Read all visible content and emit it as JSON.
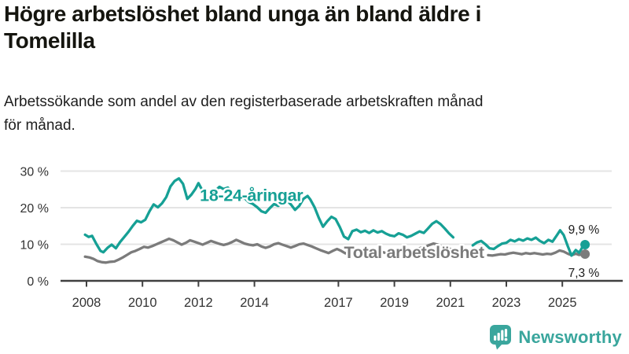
{
  "header": {
    "title": "Högre arbetslöshet bland unga än bland äldre i\nTomelilla",
    "subtitle": "Arbetssökande som andel av den registerbaserade arbetskraften månad\nför månad."
  },
  "footer": {
    "brand": "Newsworthy",
    "logo_icon": "bar-chart-speech-bubble-icon"
  },
  "colors": {
    "young": "#16a095",
    "total": "#7b7b7b",
    "grid": "#e4e4e4",
    "axis": "#404040",
    "tick_text": "#333333",
    "value_text": "#1b1b1b",
    "brand": "#3aa69d",
    "halo": "#ffffff"
  },
  "chart_data": {
    "type": "line",
    "unit": "%",
    "grid": "horizontal",
    "x_axis": {
      "tick_labels": [
        "2008",
        "2010",
        "2012",
        "2014",
        "2017",
        "2019",
        "2021",
        "2023",
        "2025"
      ],
      "tick_years": [
        2008,
        2010,
        2012,
        2014,
        2017,
        2019,
        2021,
        2023,
        2025
      ],
      "range": [
        2007.9,
        2026.1
      ]
    },
    "y_axis": {
      "tick_labels": [
        "0 %",
        "10 %",
        "20 %",
        "30 %"
      ],
      "tick_values": [
        0,
        10,
        20,
        30
      ],
      "range": [
        0,
        32
      ]
    },
    "series": [
      {
        "id": "young",
        "name": "18-24-åringar",
        "color": "#16a095",
        "end_value": 9.9,
        "end_label": "9,9 %",
        "segments": [
          [
            [
              2007.95,
              12.6
            ],
            [
              2008.08,
              12.0
            ],
            [
              2008.2,
              12.3
            ],
            [
              2008.35,
              10.1
            ],
            [
              2008.5,
              8.2
            ],
            [
              2008.6,
              7.8
            ],
            [
              2008.75,
              9.0
            ],
            [
              2008.9,
              9.9
            ],
            [
              2009.05,
              8.9
            ],
            [
              2009.2,
              10.6
            ],
            [
              2009.35,
              12.0
            ],
            [
              2009.5,
              13.4
            ],
            [
              2009.65,
              15.0
            ],
            [
              2009.8,
              16.4
            ],
            [
              2009.95,
              16.0
            ],
            [
              2010.1,
              16.7
            ],
            [
              2010.25,
              19.0
            ],
            [
              2010.4,
              20.9
            ],
            [
              2010.55,
              20.1
            ],
            [
              2010.7,
              21.2
            ],
            [
              2010.85,
              22.9
            ],
            [
              2011.0,
              25.8
            ],
            [
              2011.15,
              27.3
            ],
            [
              2011.3,
              28.0
            ],
            [
              2011.45,
              26.5
            ],
            [
              2011.6,
              22.4
            ],
            [
              2011.75,
              23.6
            ],
            [
              2011.9,
              25.2
            ],
            [
              2012.0,
              26.7
            ],
            [
              2012.15,
              24.6
            ],
            [
              2012.3,
              22.1
            ],
            [
              2012.45,
              23.3
            ],
            [
              2012.6,
              24.6
            ],
            [
              2012.75,
              25.7
            ],
            [
              2012.9,
              25.1
            ],
            [
              2013.05,
              25.5
            ],
            [
              2013.2,
              24.1
            ],
            [
              2013.35,
              22.9
            ],
            [
              2013.5,
              22.1
            ],
            [
              2013.65,
              22.6
            ],
            [
              2013.8,
              21.5
            ],
            [
              2013.95,
              21.0
            ],
            [
              2014.1,
              20.1
            ],
            [
              2014.25,
              19.0
            ],
            [
              2014.4,
              18.6
            ],
            [
              2014.55,
              19.9
            ],
            [
              2014.7,
              21.0
            ],
            [
              2014.85,
              20.5
            ],
            [
              2015.0,
              21.4
            ],
            [
              2015.15,
              22.0
            ],
            [
              2015.3,
              20.9
            ],
            [
              2015.45,
              19.4
            ],
            [
              2015.6,
              20.5
            ],
            [
              2015.75,
              22.4
            ],
            [
              2015.9,
              23.2
            ],
            [
              2016.0,
              22.2
            ],
            [
              2016.15,
              20.1
            ],
            [
              2016.3,
              17.2
            ],
            [
              2016.45,
              14.8
            ],
            [
              2016.6,
              16.3
            ],
            [
              2016.75,
              17.5
            ],
            [
              2016.9,
              16.9
            ],
            [
              2017.05,
              14.7
            ],
            [
              2017.2,
              12.1
            ],
            [
              2017.35,
              11.4
            ],
            [
              2017.5,
              13.6
            ],
            [
              2017.65,
              14.0
            ],
            [
              2017.8,
              13.3
            ],
            [
              2017.95,
              13.7
            ],
            [
              2018.1,
              13.1
            ],
            [
              2018.25,
              13.8
            ],
            [
              2018.4,
              13.2
            ],
            [
              2018.55,
              13.6
            ],
            [
              2018.7,
              12.9
            ],
            [
              2018.85,
              12.4
            ],
            [
              2019.0,
              12.2
            ],
            [
              2019.15,
              13.0
            ],
            [
              2019.3,
              12.6
            ],
            [
              2019.45,
              11.9
            ],
            [
              2019.6,
              12.3
            ],
            [
              2019.75,
              12.9
            ],
            [
              2019.9,
              13.5
            ],
            [
              2020.05,
              13.1
            ],
            [
              2020.2,
              14.3
            ],
            [
              2020.35,
              15.6
            ],
            [
              2020.5,
              16.3
            ],
            [
              2020.65,
              15.5
            ],
            [
              2020.8,
              14.3
            ],
            [
              2020.95,
              13.0
            ],
            [
              2021.1,
              11.9
            ]
          ],
          [
            [
              2021.8,
              9.7
            ],
            [
              2021.95,
              10.5
            ],
            [
              2022.1,
              10.9
            ],
            [
              2022.25,
              10.0
            ],
            [
              2022.4,
              8.9
            ],
            [
              2022.55,
              8.7
            ],
            [
              2022.7,
              9.5
            ],
            [
              2022.85,
              10.2
            ],
            [
              2023.0,
              10.4
            ],
            [
              2023.15,
              11.2
            ],
            [
              2023.3,
              10.8
            ],
            [
              2023.45,
              11.4
            ],
            [
              2023.6,
              11.0
            ],
            [
              2023.75,
              11.6
            ],
            [
              2023.9,
              11.2
            ],
            [
              2024.05,
              11.8
            ],
            [
              2024.2,
              10.9
            ],
            [
              2024.35,
              10.3
            ],
            [
              2024.5,
              11.2
            ],
            [
              2024.65,
              10.7
            ],
            [
              2024.8,
              12.4
            ],
            [
              2024.92,
              13.8
            ],
            [
              2025.05,
              12.5
            ],
            [
              2025.2,
              9.4
            ],
            [
              2025.33,
              6.9
            ],
            [
              2025.48,
              8.4
            ],
            [
              2025.6,
              7.7
            ],
            [
              2025.77,
              9.9
            ]
          ]
        ]
      },
      {
        "id": "total",
        "name": "Total arbetslöshet",
        "color": "#7b7b7b",
        "end_value": 7.3,
        "end_label": "7,3 %",
        "segments": [
          [
            [
              2007.95,
              6.6
            ],
            [
              2008.1,
              6.4
            ],
            [
              2008.25,
              6.0
            ],
            [
              2008.4,
              5.4
            ],
            [
              2008.55,
              5.1
            ],
            [
              2008.7,
              5.0
            ],
            [
              2008.85,
              5.2
            ],
            [
              2009.0,
              5.3
            ],
            [
              2009.15,
              5.8
            ],
            [
              2009.3,
              6.4
            ],
            [
              2009.45,
              7.1
            ],
            [
              2009.6,
              7.8
            ],
            [
              2009.75,
              8.2
            ],
            [
              2009.9,
              8.7
            ],
            [
              2010.05,
              9.3
            ],
            [
              2010.2,
              9.1
            ],
            [
              2010.35,
              9.5
            ],
            [
              2010.5,
              10.0
            ],
            [
              2010.65,
              10.5
            ],
            [
              2010.8,
              11.0
            ],
            [
              2010.95,
              11.5
            ],
            [
              2011.1,
              11.1
            ],
            [
              2011.25,
              10.5
            ],
            [
              2011.4,
              9.9
            ],
            [
              2011.55,
              10.4
            ],
            [
              2011.7,
              11.1
            ],
            [
              2011.85,
              10.7
            ],
            [
              2012.0,
              10.3
            ],
            [
              2012.15,
              9.9
            ],
            [
              2012.3,
              10.4
            ],
            [
              2012.45,
              10.9
            ],
            [
              2012.6,
              10.5
            ],
            [
              2012.75,
              10.1
            ],
            [
              2012.9,
              9.8
            ],
            [
              2013.05,
              10.1
            ],
            [
              2013.2,
              10.6
            ],
            [
              2013.35,
              11.2
            ],
            [
              2013.5,
              10.7
            ],
            [
              2013.65,
              10.2
            ],
            [
              2013.8,
              9.9
            ],
            [
              2013.95,
              9.7
            ],
            [
              2014.1,
              10.0
            ],
            [
              2014.25,
              9.4
            ],
            [
              2014.4,
              9.0
            ],
            [
              2014.55,
              9.4
            ],
            [
              2014.7,
              10.0
            ],
            [
              2014.85,
              10.3
            ],
            [
              2015.0,
              9.9
            ],
            [
              2015.15,
              9.5
            ],
            [
              2015.3,
              9.1
            ],
            [
              2015.45,
              9.5
            ],
            [
              2015.6,
              10.0
            ],
            [
              2015.75,
              10.2
            ],
            [
              2015.9,
              9.8
            ],
            [
              2016.05,
              9.4
            ],
            [
              2016.2,
              8.9
            ],
            [
              2016.35,
              8.4
            ],
            [
              2016.5,
              8.0
            ],
            [
              2016.65,
              7.6
            ],
            [
              2016.8,
              8.2
            ],
            [
              2016.95,
              8.7
            ],
            [
              2017.1,
              8.2
            ],
            [
              2017.25,
              7.5
            ],
            [
              2017.4,
              7.9
            ],
            [
              2017.55,
              8.5
            ],
            [
              2017.7,
              8.3
            ],
            [
              2017.85,
              8.0
            ],
            [
              2018.0,
              7.8
            ],
            [
              2018.15,
              8.1
            ],
            [
              2018.3,
              8.4
            ],
            [
              2018.45,
              8.1
            ],
            [
              2018.6,
              7.8
            ],
            [
              2018.75,
              7.5
            ],
            [
              2018.9,
              7.8
            ],
            [
              2019.05,
              8.1
            ],
            [
              2019.2,
              8.5
            ],
            [
              2019.35,
              8.2
            ],
            [
              2019.5,
              8.0
            ],
            [
              2019.65,
              8.3
            ],
            [
              2019.8,
              8.7
            ],
            [
              2019.95,
              9.0
            ],
            [
              2020.1,
              9.3
            ],
            [
              2020.25,
              9.8
            ],
            [
              2020.4,
              10.2
            ],
            [
              2020.55,
              9.9
            ],
            [
              2020.7,
              9.4
            ],
            [
              2020.85,
              9.0
            ],
            [
              2021.05,
              8.6
            ],
            [
              2021.2,
              8.3
            ]
          ],
          [
            [
              2022.35,
              7.0
            ],
            [
              2022.5,
              6.9
            ],
            [
              2022.65,
              7.1
            ],
            [
              2022.8,
              7.3
            ],
            [
              2022.95,
              7.2
            ],
            [
              2023.1,
              7.5
            ],
            [
              2023.25,
              7.7
            ],
            [
              2023.4,
              7.5
            ],
            [
              2023.55,
              7.3
            ],
            [
              2023.7,
              7.6
            ],
            [
              2023.85,
              7.4
            ],
            [
              2024.0,
              7.6
            ],
            [
              2024.15,
              7.4
            ],
            [
              2024.3,
              7.2
            ],
            [
              2024.45,
              7.4
            ],
            [
              2024.6,
              7.3
            ],
            [
              2024.75,
              7.7
            ],
            [
              2024.9,
              8.3
            ],
            [
              2025.05,
              8.0
            ],
            [
              2025.2,
              7.4
            ],
            [
              2025.33,
              7.0
            ],
            [
              2025.48,
              7.4
            ],
            [
              2025.6,
              7.1
            ],
            [
              2025.77,
              7.3
            ]
          ]
        ]
      }
    ],
    "series_labels": [
      {
        "series": "young",
        "text": "18-24-åringar",
        "x_year": 2012.05,
        "y_value": 21.8
      },
      {
        "series": "total",
        "text": "Total arbetslöshet",
        "x_year": 2017.2,
        "y_value": 6.2
      }
    ]
  }
}
